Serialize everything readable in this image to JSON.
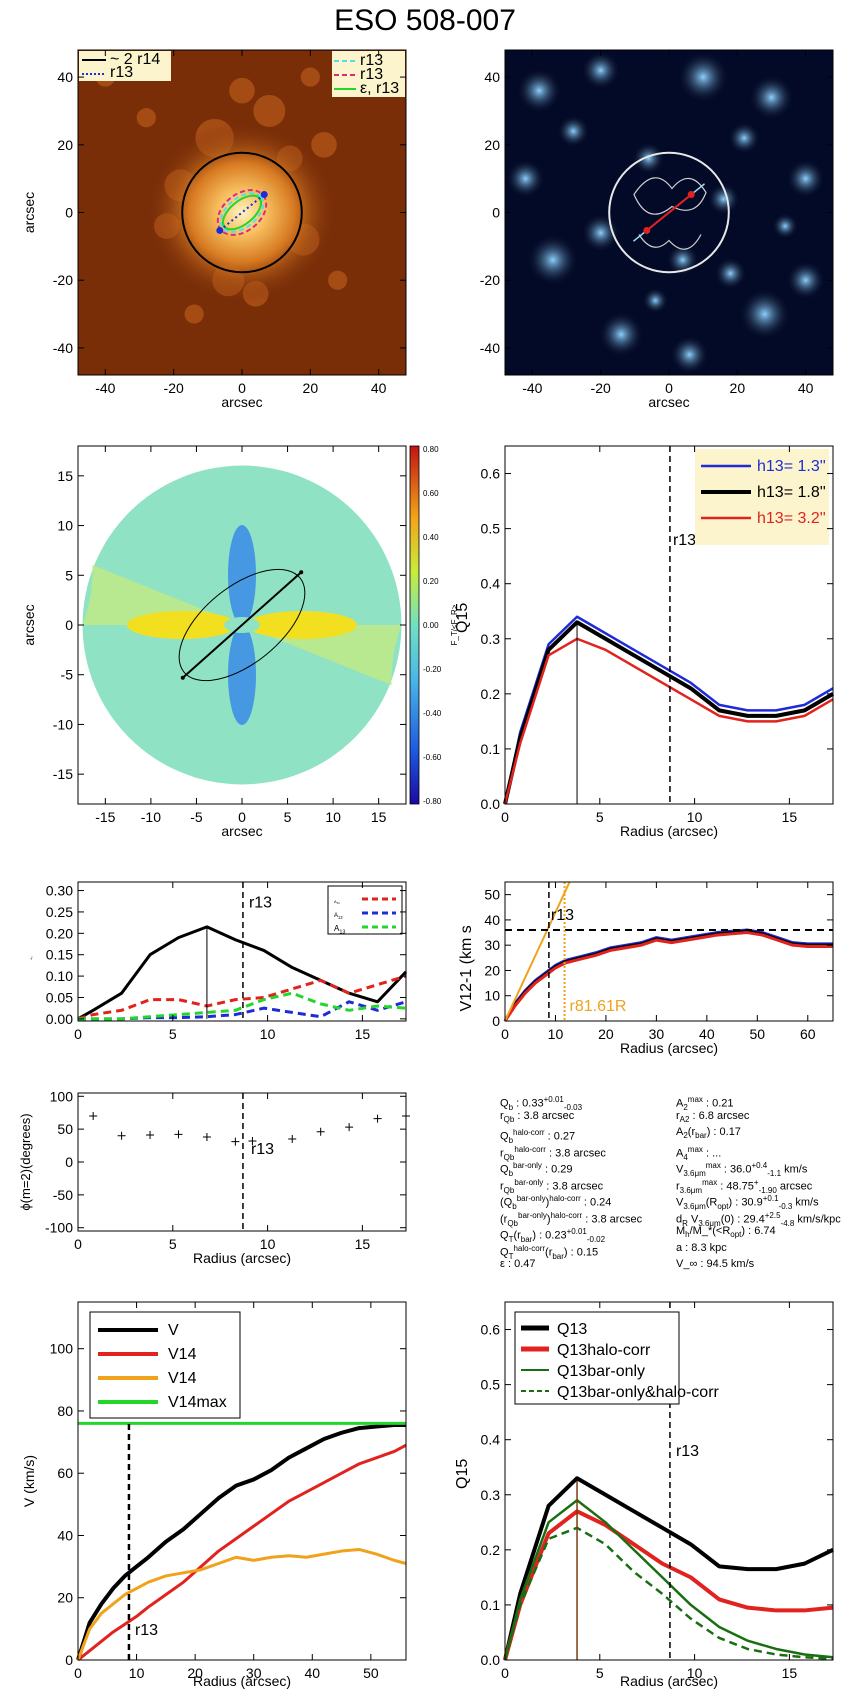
{
  "page_title": "ESO 508-007",
  "colors": {
    "black": "#000000",
    "blue": "#1f2bd6",
    "red": "#e0231f",
    "orange": "#f0a21a",
    "green": "#22d62a",
    "darkgreen": "#1a6e12",
    "brown": "#7a3c0e",
    "cyan": "#4fe0e8",
    "magenta": "#e0287e",
    "dustbrown": "#7a2e08"
  },
  "panels": {
    "p1": {
      "xlabel": "arcsec",
      "ylabel": "arcsec",
      "xticks": [
        "-40",
        "-20",
        "0",
        "20",
        "40"
      ],
      "yticks": [
        "40",
        "20",
        "0",
        "-20",
        "-40"
      ],
      "legend_left": [
        {
          "label": "~ 2 r",
          "sub": "bar"
        },
        {
          "label": "r",
          "sub": "vis"
        }
      ],
      "legend_right": [
        {
          "label": "r",
          "sub": "Qb"
        },
        {
          "label": "r",
          "sub": "A2"
        },
        {
          "label": "ε, r",
          "sub": "ε"
        }
      ]
    },
    "p2": {
      "xlabel": "arcsec",
      "xticks": [
        "-40",
        "-20",
        "0",
        "20",
        "40"
      ],
      "yticks": [
        "40",
        "20",
        "0",
        "-20",
        "-40"
      ]
    },
    "p3": {
      "xlabel": "arcsec",
      "ylabel": "arcsec",
      "xticks": [
        "-15",
        "-10",
        "-5",
        "0",
        "5",
        "10",
        "15"
      ],
      "yticks": [
        "15",
        "10",
        "5",
        "0",
        "-5",
        "-10",
        "-15"
      ],
      "colorbar_ticks": [
        "0.80",
        "0.60",
        "0.40",
        "0.20",
        "0.00",
        "-0.20",
        "-0.40",
        "-0.60",
        "-0.80"
      ],
      "colorbar_label": "F_T/<F_R>"
    },
    "p4": {
      "xlabel": "Radius (arcsec)",
      "ylabel": "Q",
      "ylabel_sub": "T",
      "xticks": [
        "0",
        "5",
        "10",
        "15"
      ],
      "yticks": [
        "0.6",
        "0.5",
        "0.4",
        "0.3",
        "0.2",
        "0.1",
        "0.0"
      ],
      "rbar": "r",
      "rbar_sub": "bar",
      "legend": [
        {
          "pre": "h",
          "sub": "z",
          "val": "=  1.3''"
        },
        {
          "pre": "h",
          "sub": "z",
          "val": "=  1.8''"
        },
        {
          "pre": "h",
          "sub": "z",
          "val": "=  3.2''"
        }
      ]
    },
    "p5": {
      "xlabel": "",
      "ylabel": "A",
      "ylabel_sub": "2",
      "xticks": [
        "0",
        "5",
        "10",
        "15"
      ],
      "yticks": [
        "0.30",
        "0.25",
        "0.20",
        "0.15",
        "0.10",
        "0.05",
        "0.00"
      ],
      "rbar": "r",
      "rbar_sub": "bar",
      "legend": [
        {
          "pre": "A",
          "sub": "4"
        },
        {
          "pre": "A",
          "sub": "6"
        },
        {
          "pre": "A",
          "sub": "8"
        }
      ]
    },
    "p6": {
      "xlabel": "Radius (arcsec)",
      "ylabel": "V",
      "ylabel_sub": "3.6μm",
      "ylabel_unit": " (km s",
      "ylabel_sup": "-1",
      "xticks": [
        "0",
        "10",
        "20",
        "30",
        "40",
        "50",
        "60"
      ],
      "yticks": [
        "50",
        "40",
        "30",
        "20",
        "10",
        "0"
      ],
      "rbar": "r",
      "rbar_sub": "bar",
      "rmax": "r",
      "rmax_sub": "max",
      "rmax_sup": "1.61R",
      "rmax_sup_sub": "d,3.6"
    },
    "p7": {
      "xlabel": "Radius (arcsec)",
      "ylabel": "ϕ(m=2)(degrees)",
      "xticks": [
        "0",
        "5",
        "10",
        "15"
      ],
      "yticks": [
        "100",
        "50",
        "0",
        "-50",
        "-100"
      ],
      "rbar": "r",
      "rbar_sub": "bar"
    },
    "p9": {
      "xlabel": "Radius (arcsec)",
      "ylabel": "V (km/s)",
      "xticks": [
        "0",
        "10",
        "20",
        "30",
        "40",
        "50"
      ],
      "yticks": [
        "100",
        "80",
        "60",
        "40",
        "20",
        "0"
      ],
      "rbar": "r",
      "rbar_sub": "bar",
      "legend": [
        {
          "pre": "V",
          "sub": "",
          "sup": ""
        },
        {
          "pre": "V",
          "sub": "halo",
          "sup": ""
        },
        {
          "pre": "V",
          "sub": "3.6μm",
          "sup": ""
        },
        {
          "pre": "V",
          "sub": "HI",
          "sup": "max"
        }
      ]
    },
    "p10": {
      "xlabel": "Radius (arcsec)",
      "ylabel": "Q",
      "ylabel_sub": "T",
      "xticks": [
        "0",
        "5",
        "10",
        "15"
      ],
      "yticks": [
        "0.6",
        "0.5",
        "0.4",
        "0.3",
        "0.2",
        "0.1",
        "0.0"
      ],
      "rbar": "r",
      "rbar_sub": "bar",
      "legend": [
        {
          "pre": "Q",
          "sub": "T",
          "sup": ""
        },
        {
          "pre": "Q",
          "sub": "T",
          "sup": "halo-corr"
        },
        {
          "pre": "Q",
          "sub": "T",
          "sup": "bar-only"
        },
        {
          "pre": "Q",
          "sub": "T",
          "sup": "bar-only&halo-corr"
        }
      ]
    }
  },
  "annotations": {
    "left": [
      "Q_b :  0.33^{+0.01}_{-0.03}",
      "r_{Qb} :   3.8  arcsec",
      "Q_b^{halo-corr} :  0.27",
      "r_{Qb}^{halo-corr} :  3.8 arcsec",
      "Q_b^{bar-only} :  0.29",
      "r_{Qb}^{bar-only} :  3.8 arcsec",
      "(Q_b^{bar-only})^{halo-corr} :  0.24",
      "(r_{Qb}^{bar-only})^{halo-corr} :  3.8 arcsec",
      "Q_T(r_{bar}) :  0.23^{+0.01}_{-0.02}",
      "Q_T^{halo-corr}(r_{bar}) :  0.15",
      "ε :  0.47"
    ],
    "right": [
      "A_2^{max} :  0.21",
      "r_{A2} :  6.8 arcsec",
      "A_2(r_{bar}) :  0.17",
      "A_4^{max} : ...",
      "V_{3.6μm}^{max} :  36.0^{+0.4}_{-1.1} km/s",
      "r_{3.6μm}^{max} :  48.75^{+}_{-1.90} arcsec",
      "V_{3.6μm}(R_{opt}) :  30.9^{+0.1}_{-0.3} km/s",
      "d_R V_{3.6μm}(0) :  29.4^{+2.5}_{-4.8} km/s/kpc",
      "M_h/M_*(<R_{opt}) :  6.74",
      "a :  8.3 kpc",
      "V_∞ :  94.5 km/s"
    ]
  },
  "chart_data": [
    {
      "type": "heatmap",
      "panel": "p1",
      "title": "",
      "xlabel": "arcsec",
      "ylabel": "arcsec",
      "xlim": [
        -48,
        48
      ],
      "ylim": [
        -48,
        48
      ],
      "overlays": {
        "circle_2rbar_radius": 17.5,
        "rvis_endpoints": [
          [
            -6.5,
            -5.3
          ],
          [
            6.5,
            5.3
          ]
        ],
        "rQb_ellipse": {
          "a": 7.2,
          "b": 4.3,
          "pa_deg": 39
        },
        "rA2_ellipse": {
          "a": 8.0,
          "b": 5.4,
          "pa_deg": 39
        },
        "eps_ellipse": {
          "a": 6.6,
          "b": 3.4,
          "pa_deg": 39
        }
      }
    },
    {
      "type": "heatmap",
      "panel": "p2",
      "title": "",
      "xlabel": "arcsec",
      "ylabel": "",
      "xlim": [
        -48,
        48
      ],
      "ylim": [
        -48,
        48
      ],
      "overlays": {
        "circle_radius": 17.5,
        "bar_endpoints": [
          [
            -6.5,
            -5.3
          ],
          [
            6.5,
            5.3
          ]
        ]
      }
    },
    {
      "type": "heatmap",
      "panel": "p3",
      "title": "",
      "xlabel": "arcsec",
      "ylabel": "arcsec",
      "xlim": [
        -18,
        18
      ],
      "ylim": [
        -18,
        18
      ],
      "colorbar_range": [
        -0.8,
        0.8
      ],
      "overlays": {
        "bar_endpoints": [
          [
            -6.5,
            -5.3
          ],
          [
            6.5,
            5.3
          ]
        ],
        "ellipse": {
          "a": 8.2,
          "b": 4.2,
          "pa_deg": 39
        }
      }
    },
    {
      "type": "line",
      "panel": "p4",
      "xlabel": "Radius (arcsec)",
      "ylabel": "Q_T",
      "xlim": [
        0,
        17.3
      ],
      "ylim": [
        0,
        0.65
      ],
      "rbar": 8.7,
      "peak_marker": 3.8,
      "x": [
        0,
        0.8,
        2.3,
        3.8,
        5.3,
        6.8,
        8.3,
        9.8,
        11.3,
        12.8,
        14.3,
        15.8,
        17.3
      ],
      "series": [
        {
          "name": "h_z=1.3''",
          "color": "#1f2bd6",
          "values": [
            0,
            0.13,
            0.29,
            0.34,
            0.31,
            0.28,
            0.25,
            0.22,
            0.18,
            0.17,
            0.17,
            0.18,
            0.21
          ]
        },
        {
          "name": "h_z=1.8''",
          "color": "#000000",
          "values": [
            0,
            0.12,
            0.28,
            0.33,
            0.3,
            0.27,
            0.24,
            0.21,
            0.17,
            0.16,
            0.16,
            0.17,
            0.2
          ]
        },
        {
          "name": "h_z=3.2''",
          "color": "#e0231f",
          "values": [
            0,
            0.11,
            0.27,
            0.3,
            0.28,
            0.25,
            0.22,
            0.19,
            0.16,
            0.15,
            0.15,
            0.16,
            0.19
          ]
        }
      ]
    },
    {
      "type": "line",
      "panel": "p5",
      "xlabel": "",
      "ylabel": "A_2",
      "xlim": [
        0,
        17.3
      ],
      "ylim": [
        -0.005,
        0.32
      ],
      "rbar": 8.7,
      "peak_marker": 6.8,
      "x": [
        0,
        0.8,
        2.3,
        3.8,
        5.3,
        6.8,
        8.3,
        9.8,
        11.3,
        12.8,
        14.3,
        15.8,
        17.3
      ],
      "series": [
        {
          "name": "A_2",
          "color": "#000000",
          "values": [
            0.0,
            0.02,
            0.06,
            0.15,
            0.19,
            0.215,
            0.185,
            0.16,
            0.12,
            0.09,
            0.06,
            0.04,
            0.11
          ]
        },
        {
          "name": "A_4",
          "color": "#e0231f",
          "dashed": true,
          "values": [
            0.0,
            0.01,
            0.02,
            0.045,
            0.045,
            0.03,
            0.045,
            0.05,
            0.07,
            0.09,
            0.06,
            0.08,
            0.1
          ]
        },
        {
          "name": "A_6",
          "color": "#1f2bd6",
          "dashed": true,
          "values": [
            0.0,
            0.0,
            0.0,
            0.003,
            0.003,
            0.005,
            0.01,
            0.025,
            0.015,
            0.005,
            0.04,
            0.02,
            0.04
          ]
        },
        {
          "name": "A_8",
          "color": "#22d62a",
          "dashed": true,
          "values": [
            0.0,
            0.0,
            0.0,
            0.005,
            0.01,
            0.015,
            0.02,
            0.045,
            0.06,
            0.035,
            0.02,
            0.03,
            0.025
          ]
        }
      ]
    },
    {
      "type": "line",
      "panel": "p6",
      "xlabel": "Radius (arcsec)",
      "ylabel": "V_3.6μm (km s^-1)",
      "xlim": [
        0,
        65
      ],
      "ylim": [
        0,
        55
      ],
      "rbar": 8.7,
      "rmax": 11.8,
      "vmax_hline": 36.0,
      "x": [
        0,
        2,
        4,
        6,
        8,
        10,
        12,
        15,
        18,
        21,
        24,
        27,
        30,
        33,
        36,
        39,
        42,
        45,
        48,
        51,
        54,
        57,
        60,
        63,
        65
      ],
      "series": [
        {
          "name": "blue",
          "color": "#1f2bd6",
          "values": [
            0,
            7,
            12,
            16,
            19,
            22,
            24,
            25.5,
            27,
            29,
            30,
            31,
            33,
            32,
            33,
            34,
            35,
            35.5,
            36,
            35,
            33,
            31,
            30.5,
            30.5,
            30.5
          ]
        },
        {
          "name": "black",
          "color": "#000000",
          "values": [
            0,
            6.5,
            11.5,
            15.5,
            18.5,
            21.5,
            23.5,
            25,
            26.5,
            28.5,
            29.5,
            30.5,
            32.5,
            31.5,
            32.5,
            33.5,
            34.5,
            35,
            35.5,
            34.5,
            32.5,
            30.5,
            30,
            30,
            30
          ]
        },
        {
          "name": "red",
          "color": "#e0231f",
          "values": [
            0,
            6,
            11,
            15,
            18,
            21,
            23,
            24.5,
            26,
            28,
            29,
            30,
            32,
            31,
            32,
            33,
            34,
            34.5,
            35,
            34,
            32,
            30,
            29.5,
            29.5,
            29.5
          ]
        },
        {
          "name": "slope",
          "color": "#f0a21a",
          "x": [
            0,
            12.8
          ],
          "values": [
            0,
            55
          ]
        }
      ]
    },
    {
      "type": "scatter",
      "panel": "p7",
      "xlabel": "Radius (arcsec)",
      "ylabel": "ϕ(m=2)(degrees)",
      "xlim": [
        0,
        17.3
      ],
      "ylim": [
        -105,
        105
      ],
      "rbar": 8.7,
      "x": [
        0.8,
        2.3,
        3.8,
        5.3,
        6.8,
        8.3,
        9.2,
        11.3,
        12.8,
        14.3,
        15.8,
        17.3
      ],
      "values": [
        70,
        40,
        41,
        42,
        38,
        31,
        32,
        35,
        46,
        53,
        66,
        70
      ]
    },
    {
      "type": "line",
      "panel": "p9",
      "xlabel": "Radius (arcsec)",
      "ylabel": "V (km/s)",
      "xlim": [
        0,
        56
      ],
      "ylim": [
        0,
        115
      ],
      "rbar": 8.7,
      "vhi_max": 76,
      "x": [
        0,
        2,
        4,
        6,
        8,
        10,
        12,
        15,
        18,
        21,
        24,
        27,
        30,
        33,
        36,
        39,
        42,
        45,
        48,
        51,
        54,
        56
      ],
      "series": [
        {
          "name": "V",
          "color": "#000000",
          "values": [
            0,
            12,
            18,
            23,
            27,
            30,
            33,
            38,
            42,
            47,
            52,
            56,
            58,
            61,
            65,
            68,
            71,
            73,
            74.5,
            75,
            75.5,
            75.5
          ]
        },
        {
          "name": "V_halo",
          "color": "#e0231f",
          "values": [
            0,
            3,
            6,
            9,
            11.5,
            14,
            17,
            21,
            25,
            30,
            35,
            39,
            43,
            47,
            51,
            54,
            57,
            60,
            63,
            65,
            67,
            69
          ]
        },
        {
          "name": "V_3.6μm",
          "color": "#f0a21a",
          "values": [
            0,
            10,
            15,
            18,
            21,
            23,
            25,
            27,
            28,
            29,
            31,
            33,
            32,
            33,
            33.5,
            33,
            34,
            35,
            35.5,
            34,
            32,
            31
          ]
        },
        {
          "name": "V_HI^max",
          "color": "#22d62a",
          "values": [
            76,
            76,
            76,
            76,
            76,
            76,
            76,
            76,
            76,
            76,
            76,
            76,
            76,
            76,
            76,
            76,
            76,
            76,
            76,
            76,
            76,
            76
          ]
        }
      ]
    },
    {
      "type": "line",
      "panel": "p10",
      "xlabel": "Radius (arcsec)",
      "ylabel": "Q_T",
      "xlim": [
        0,
        17.3
      ],
      "ylim": [
        0,
        0.65
      ],
      "rbar": 8.7,
      "peak_marker": 3.8,
      "x": [
        0,
        0.8,
        2.3,
        3.8,
        5.3,
        6.8,
        8.3,
        9.8,
        11.3,
        12.8,
        14.3,
        15.8,
        17.3
      ],
      "series": [
        {
          "name": "Q_T",
          "color": "#000000",
          "values": [
            0,
            0.12,
            0.28,
            0.33,
            0.3,
            0.27,
            0.24,
            0.21,
            0.17,
            0.165,
            0.165,
            0.175,
            0.2
          ]
        },
        {
          "name": "Q_T^halo-corr",
          "color": "#e0231f",
          "values": [
            0,
            0.1,
            0.23,
            0.27,
            0.245,
            0.21,
            0.175,
            0.15,
            0.11,
            0.095,
            0.09,
            0.09,
            0.095
          ]
        },
        {
          "name": "Q_T^bar-only",
          "color": "#1a6e12",
          "values": [
            0,
            0.11,
            0.25,
            0.29,
            0.25,
            0.2,
            0.15,
            0.1,
            0.06,
            0.035,
            0.02,
            0.01,
            0.005
          ]
        },
        {
          "name": "Q_T^bar-only&halo-corr",
          "color": "#1a6e12",
          "dashed": true,
          "values": [
            0,
            0.1,
            0.22,
            0.24,
            0.21,
            0.16,
            0.12,
            0.075,
            0.04,
            0.02,
            0.01,
            0.005,
            0.002
          ]
        }
      ]
    }
  ]
}
